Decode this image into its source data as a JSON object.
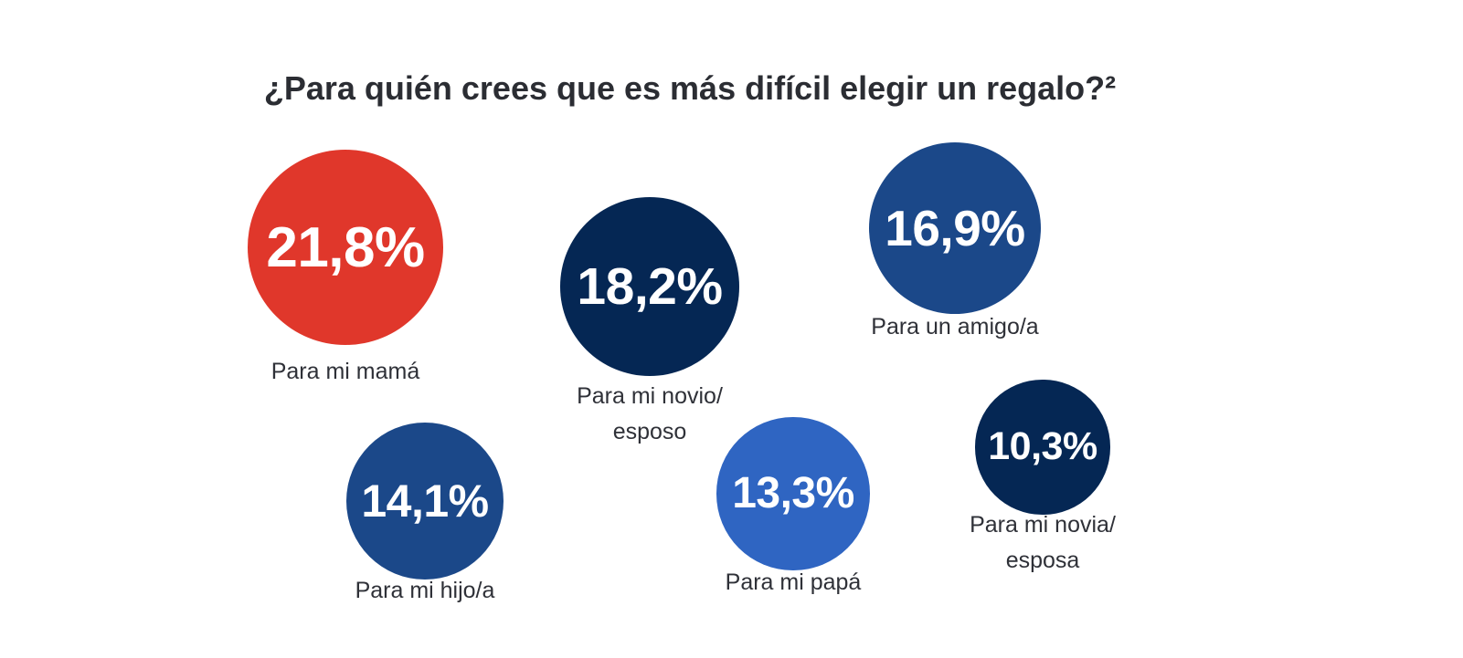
{
  "chart_data": {
    "type": "bubble",
    "title": "¿Para quién crees que es más difícil elegir un regalo?²",
    "unit": "%",
    "items": [
      {
        "lines": [
          "Para mi mamá"
        ],
        "value": 21.8,
        "value_label": "21,8%",
        "color": "#e0372b"
      },
      {
        "lines": [
          "Para mi novio/",
          "esposo"
        ],
        "value": 18.2,
        "value_label": "18,2%",
        "color": "#052754"
      },
      {
        "lines": [
          "Para un amigo/a"
        ],
        "value": 16.9,
        "value_label": "16,9%",
        "color": "#1b4889"
      },
      {
        "lines": [
          "Para mi hijo/a"
        ],
        "value": 14.1,
        "value_label": "14,1%",
        "color": "#1b4889"
      },
      {
        "lines": [
          "Para mi papá"
        ],
        "value": 13.3,
        "value_label": "13,3%",
        "color": "#2f65c2"
      },
      {
        "lines": [
          "Para mi novia/",
          "esposa"
        ],
        "value": 10.3,
        "value_label": "10,3%",
        "color": "#052754"
      }
    ]
  }
}
